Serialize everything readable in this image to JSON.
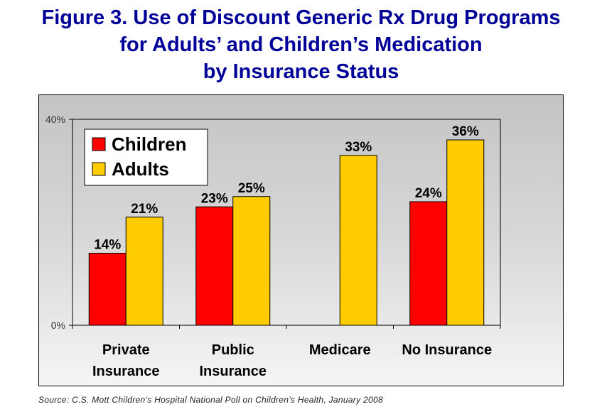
{
  "title_lines": [
    "Figure 3. Use of Discount Generic Rx Drug Programs",
    "for Adults’ and Children’s Medication",
    "by Insurance Status"
  ],
  "source": "Source: C.S. Mott Children’s Hospital National Poll on Children’s Health, January 2008",
  "colors": {
    "children": "#ff0000",
    "adults": "#ffcc00"
  },
  "chart_data": {
    "type": "bar",
    "title": "Figure 3. Use of Discount Generic Rx Drug Programs for Adults’ and Children’s Medication by Insurance Status",
    "xlabel": "",
    "ylabel": "",
    "ylim": [
      0,
      40
    ],
    "yticks": [
      {
        "value": 0,
        "label": "0%"
      },
      {
        "value": 40,
        "label": "40%"
      }
    ],
    "categories": [
      [
        "Private",
        "Insurance"
      ],
      [
        "Public",
        "Insurance"
      ],
      [
        "Medicare"
      ],
      [
        "No Insurance"
      ]
    ],
    "series": [
      {
        "name": "Children",
        "color": "#ff0000",
        "values": [
          14,
          23,
          null,
          24
        ],
        "labels": [
          "14%",
          "23%",
          "",
          "24%"
        ]
      },
      {
        "name": "Adults",
        "color": "#ffcc00",
        "values": [
          21,
          25,
          33,
          36
        ],
        "labels": [
          "21%",
          "25%",
          "33%",
          "36%"
        ]
      }
    ],
    "legend": {
      "position": "top-left",
      "entries": [
        "Children",
        "Adults"
      ]
    },
    "grid": false
  }
}
